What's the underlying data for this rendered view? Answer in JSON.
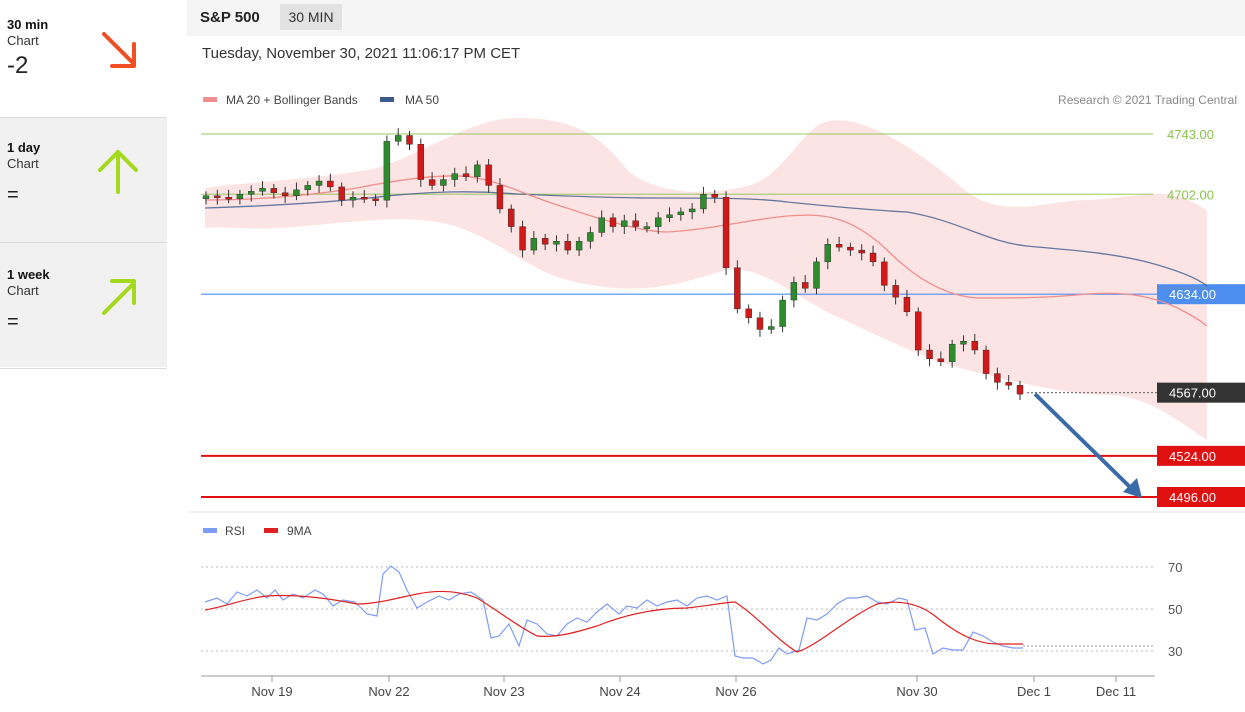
{
  "sidebar": {
    "items": [
      {
        "title": "30 min",
        "subtitle": "Chart",
        "score": "-2",
        "direction": "down-right",
        "arrow_color": "#f04e23"
      },
      {
        "title": "1 day",
        "subtitle": "Chart",
        "score": "=",
        "direction": "up",
        "arrow_color": "#a5d91e"
      },
      {
        "title": "1 week",
        "subtitle": "Chart",
        "score": "=",
        "direction": "up-right",
        "arrow_color": "#a5d91e"
      }
    ]
  },
  "header": {
    "symbol": "S&P 500",
    "timeframe_badge": "30 MIN",
    "datetime": "Tuesday, November 30, 2021 11:06:17 PM CET",
    "copyright": "Research © 2021 Trading Central"
  },
  "chart_data": [
    {
      "type": "candlestick",
      "legend": [
        {
          "name": "MA 20 + Bollinger Bands",
          "color": "#f08d8d"
        },
        {
          "name": "MA 50",
          "color": "#3c5a8c"
        }
      ],
      "levels": [
        {
          "value": 4743.0,
          "label": "4743.00",
          "color": "#88c34a",
          "style": "line"
        },
        {
          "value": 4702.0,
          "label": "4702.00",
          "color": "#88c34a",
          "style": "line"
        },
        {
          "value": 4634.0,
          "label": "4634.00",
          "color": "#4d8ef0",
          "style": "line"
        },
        {
          "value": 4567.0,
          "label": "4567.00",
          "color": "#333333",
          "style": "dotted"
        },
        {
          "value": 4524.0,
          "label": "4524.00",
          "color": "#e01010",
          "style": "line"
        },
        {
          "value": 4496.0,
          "label": "4496.00",
          "color": "#e01010",
          "style": "line"
        }
      ],
      "x_labels": [
        "Nov 19",
        "Nov 22",
        "Nov 23",
        "Nov 24",
        "Nov 26",
        "Nov 30",
        "Dec 1",
        "Dec 11"
      ],
      "close_path": [
        4701,
        4700,
        4699,
        4702,
        4704,
        4706,
        4703,
        4701,
        4705,
        4708,
        4711,
        4707,
        4698,
        4700,
        4699,
        4698,
        4738,
        4742,
        4736,
        4712,
        4708,
        4712,
        4716,
        4714,
        4722,
        4708,
        4692,
        4680,
        4664,
        4672,
        4668,
        4670,
        4664,
        4670,
        4676,
        4686,
        4680,
        4684,
        4680,
        4680,
        4686,
        4688,
        4690,
        4692,
        4702,
        4700,
        4652,
        4624,
        4618,
        4610,
        4612,
        4630,
        4642,
        4638,
        4656,
        4668,
        4666,
        4664,
        4662,
        4656,
        4640,
        4632,
        4622,
        4596,
        4590,
        4588,
        4600,
        4602,
        4596,
        4580,
        4574,
        4572,
        4566
      ]
    },
    {
      "type": "line",
      "series": [
        {
          "name": "RSI",
          "color": "#7f9cf5"
        },
        {
          "name": "9MA",
          "color": "#e02020"
        }
      ],
      "y_ticks": [
        70,
        50,
        30
      ],
      "ylim": [
        20,
        80
      ]
    }
  ]
}
